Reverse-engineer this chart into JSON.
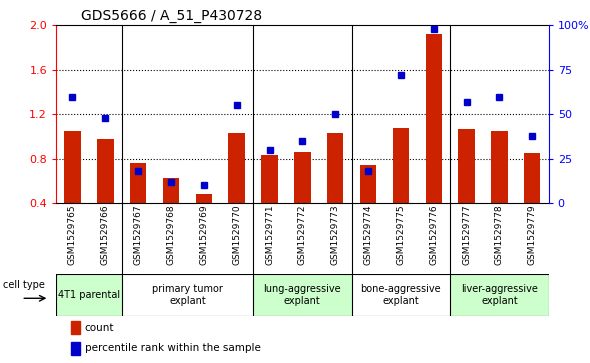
{
  "title": "GDS5666 / A_51_P430728",
  "samples": [
    "GSM1529765",
    "GSM1529766",
    "GSM1529767",
    "GSM1529768",
    "GSM1529769",
    "GSM1529770",
    "GSM1529771",
    "GSM1529772",
    "GSM1529773",
    "GSM1529774",
    "GSM1529775",
    "GSM1529776",
    "GSM1529777",
    "GSM1529778",
    "GSM1529779"
  ],
  "bar_values": [
    1.05,
    0.98,
    0.76,
    0.63,
    0.48,
    1.03,
    0.83,
    0.86,
    1.03,
    0.74,
    1.08,
    1.92,
    1.07,
    1.05,
    0.85
  ],
  "percentile_values": [
    60,
    48,
    18,
    12,
    10,
    55,
    30,
    35,
    50,
    18,
    72,
    98,
    57,
    60,
    38
  ],
  "ylim_left": [
    0.4,
    2.0
  ],
  "ylim_right": [
    0,
    100
  ],
  "yticks_left": [
    0.4,
    0.8,
    1.2,
    1.6,
    2.0
  ],
  "yticks_right": [
    0,
    25,
    50,
    75,
    100
  ],
  "ytick_labels_right": [
    "0",
    "25",
    "50",
    "75",
    "100%"
  ],
  "bar_color": "#cc2200",
  "dot_color": "#0000cc",
  "groups": [
    {
      "label": "4T1 parental",
      "indices": [
        0,
        1
      ],
      "color": "#ccffcc"
    },
    {
      "label": "primary tumor\nexplant",
      "indices": [
        2,
        3,
        4,
        5
      ],
      "color": "#ffffff"
    },
    {
      "label": "lung-aggressive\nexplant",
      "indices": [
        6,
        7,
        8
      ],
      "color": "#ccffcc"
    },
    {
      "label": "bone-aggressive\nexplant",
      "indices": [
        9,
        10,
        11
      ],
      "color": "#ffffff"
    },
    {
      "label": "liver-aggressive\nexplant",
      "indices": [
        12,
        13,
        14
      ],
      "color": "#ccffcc"
    }
  ],
  "group_dividers": [
    1.5,
    5.5,
    8.5,
    11.5
  ],
  "cell_type_label": "cell type",
  "legend_bar_label": "count",
  "legend_dot_label": "percentile rank within the sample",
  "dotted_lines": [
    0.8,
    1.2,
    1.6
  ]
}
